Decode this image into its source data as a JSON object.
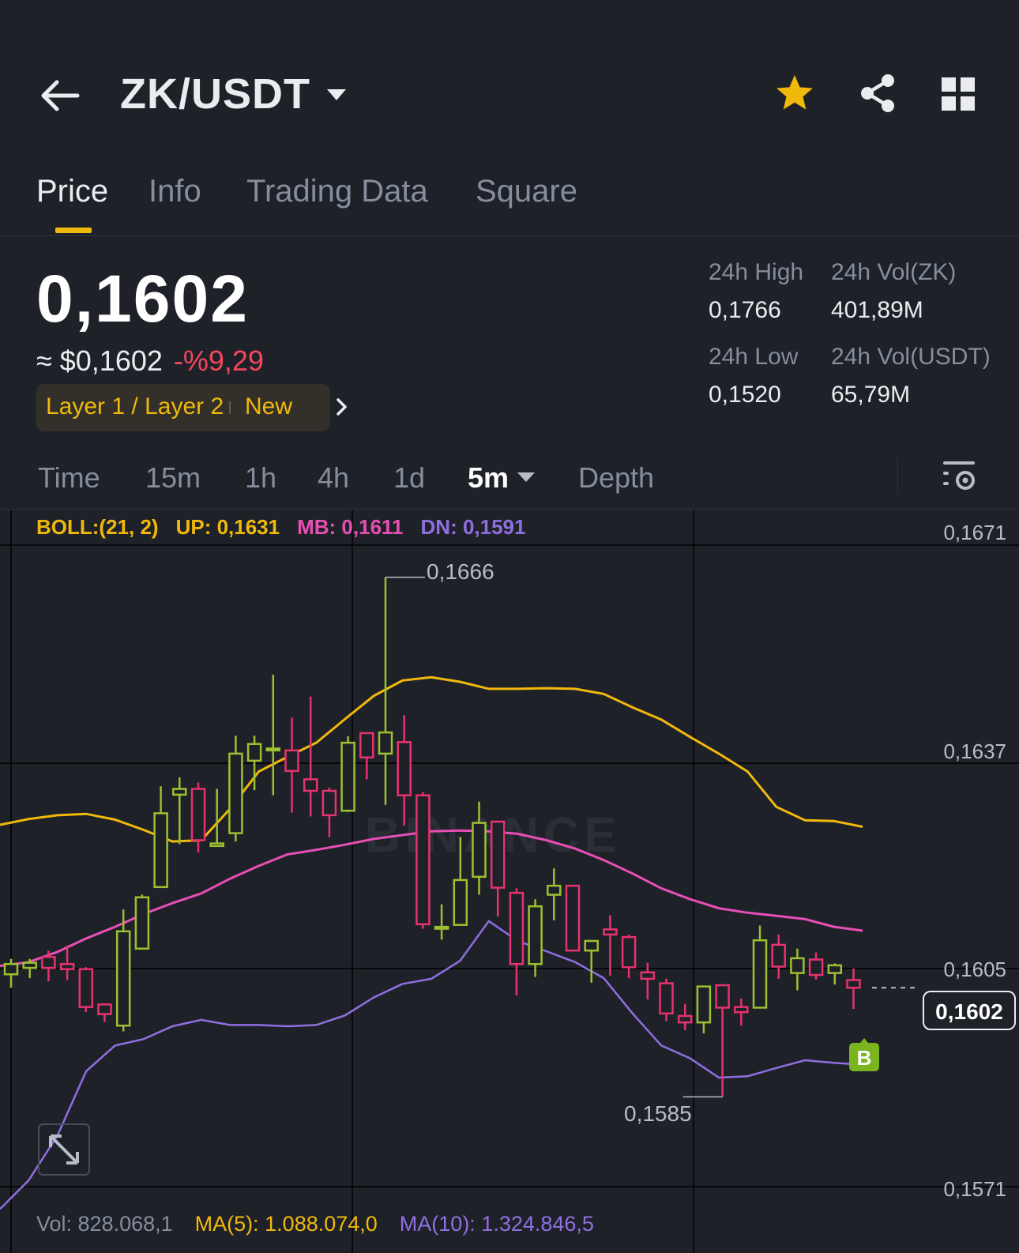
{
  "header": {
    "pair": "ZK/USDT",
    "icons": [
      "back-arrow-icon",
      "caret-down-icon",
      "star-icon",
      "share-icon",
      "grid-icon"
    ],
    "star_color": "#f0b90b"
  },
  "tabs": [
    {
      "label": "Price",
      "active": true
    },
    {
      "label": "Info",
      "active": false
    },
    {
      "label": "Trading Data",
      "active": false
    },
    {
      "label": "Square",
      "active": false
    }
  ],
  "price": {
    "last": "0,1602",
    "approx": "≈ $0,1602",
    "change": "-%9,29",
    "change_color": "#f6465d",
    "tag": "Layer 1 / Layer 2",
    "tag_new": "New"
  },
  "stats": {
    "high_label": "24h High",
    "high_value": "0,1766",
    "low_label": "24h Low",
    "low_value": "0,1520",
    "vol_zk_label": "24h Vol(ZK)",
    "vol_zk_value": "401,89M",
    "vol_usdt_label": "24h Vol(USDT)",
    "vol_usdt_value": "65,79M"
  },
  "intervals": [
    {
      "label": "Time",
      "active": false
    },
    {
      "label": "15m",
      "active": false
    },
    {
      "label": "1h",
      "active": false
    },
    {
      "label": "4h",
      "active": false
    },
    {
      "label": "1d",
      "active": false
    },
    {
      "label": "5m",
      "active": true
    },
    {
      "label": "Depth",
      "active": false
    }
  ],
  "chart": {
    "boll_label": "BOLL:(21, 2)",
    "up_label": "UP: 0,1631",
    "mb_label": "MB: 0,1611",
    "dn_label": "DN: 0,1591",
    "axis_labels": [
      "0,1671",
      "0,1637",
      "0,1605",
      "0,1571"
    ],
    "current_price": "0,1602",
    "max_label": "0,1666",
    "min_label": "0,1585",
    "marker": "B",
    "watermark": "BINANCE",
    "colors": {
      "up": "#9bc12f",
      "down": "#e6326e",
      "boll_up": "#f0b90b",
      "boll_mb": "#e84fb5",
      "boll_dn": "#8f6fe0",
      "grid": "#000000"
    },
    "volume": {
      "vol": "Vol: 828.068,1",
      "ma5": "MA(5): 1.088.074,0",
      "ma10": "MA(10): 1.324.846,5"
    }
  },
  "chart_data": {
    "type": "candlestick",
    "ylim": [
      0.1565,
      0.1673
    ],
    "y_ticks": [
      0.1671,
      0.1637,
      0.1605,
      0.1571
    ],
    "candles": [
      {
        "o": 0.16041,
        "c": 0.16057,
        "h": 0.16065,
        "l": 0.1602
      },
      {
        "o": 0.16051,
        "c": 0.16059,
        "h": 0.16065,
        "l": 0.16035
      },
      {
        "o": 0.16068,
        "c": 0.16051,
        "h": 0.16078,
        "l": 0.1603
      },
      {
        "o": 0.16057,
        "c": 0.16049,
        "h": 0.16086,
        "l": 0.16032
      },
      {
        "o": 0.16049,
        "c": 0.1599,
        "h": 0.16052,
        "l": 0.15982
      },
      {
        "o": 0.15994,
        "c": 0.15979,
        "h": 0.15995,
        "l": 0.15967
      },
      {
        "o": 0.15961,
        "c": 0.16108,
        "h": 0.16142,
        "l": 0.15952
      },
      {
        "o": 0.16081,
        "c": 0.16161,
        "h": 0.16165,
        "l": 0.16081
      },
      {
        "o": 0.16177,
        "c": 0.16292,
        "h": 0.16334,
        "l": 0.16177
      },
      {
        "o": 0.16321,
        "c": 0.1633,
        "h": 0.16348,
        "l": 0.16244
      },
      {
        "o": 0.1633,
        "c": 0.1625,
        "h": 0.1634,
        "l": 0.16231
      },
      {
        "o": 0.16241,
        "c": 0.16245,
        "h": 0.1633,
        "l": 0.1624
      },
      {
        "o": 0.16261,
        "c": 0.16385,
        "h": 0.16413,
        "l": 0.16248
      },
      {
        "o": 0.16374,
        "c": 0.164,
        "h": 0.16413,
        "l": 0.16328
      },
      {
        "o": 0.1639,
        "c": 0.16393,
        "h": 0.16508,
        "l": 0.1632
      },
      {
        "o": 0.1639,
        "c": 0.16358,
        "h": 0.16441,
        "l": 0.16293
      },
      {
        "o": 0.16345,
        "c": 0.16327,
        "h": 0.16474,
        "l": 0.16287
      },
      {
        "o": 0.16327,
        "c": 0.16289,
        "h": 0.16332,
        "l": 0.16255
      },
      {
        "o": 0.16296,
        "c": 0.16402,
        "h": 0.16412,
        "l": 0.16294
      },
      {
        "o": 0.16417,
        "c": 0.16379,
        "h": 0.16417,
        "l": 0.16345
      },
      {
        "o": 0.16385,
        "c": 0.16418,
        "h": 0.1666,
        "l": 0.16305
      },
      {
        "o": 0.16403,
        "c": 0.1632,
        "h": 0.16445,
        "l": 0.16273
      },
      {
        "o": 0.1632,
        "c": 0.16119,
        "h": 0.16325,
        "l": 0.16112
      },
      {
        "o": 0.16112,
        "c": 0.16115,
        "h": 0.1615,
        "l": 0.16095
      },
      {
        "o": 0.16118,
        "c": 0.16188,
        "h": 0.16255,
        "l": 0.16118
      },
      {
        "o": 0.16193,
        "c": 0.16277,
        "h": 0.1631,
        "l": 0.16165
      },
      {
        "o": 0.16279,
        "c": 0.16176,
        "h": 0.16279,
        "l": 0.16131
      },
      {
        "o": 0.16168,
        "c": 0.16057,
        "h": 0.16175,
        "l": 0.16008
      },
      {
        "o": 0.16057,
        "c": 0.16147,
        "h": 0.16158,
        "l": 0.16037
      },
      {
        "o": 0.16165,
        "c": 0.16179,
        "h": 0.16206,
        "l": 0.16125
      },
      {
        "o": 0.16179,
        "c": 0.16078,
        "h": 0.16179,
        "l": 0.16078
      },
      {
        "o": 0.16078,
        "c": 0.16093,
        "h": 0.16093,
        "l": 0.16028
      },
      {
        "o": 0.16111,
        "c": 0.16103,
        "h": 0.16133,
        "l": 0.16039
      },
      {
        "o": 0.16099,
        "c": 0.16052,
        "h": 0.16103,
        "l": 0.16035
      },
      {
        "o": 0.16044,
        "c": 0.16034,
        "h": 0.16059,
        "l": 0.16002
      },
      {
        "o": 0.16027,
        "c": 0.1598,
        "h": 0.16034,
        "l": 0.15968
      },
      {
        "o": 0.15976,
        "c": 0.15966,
        "h": 0.15995,
        "l": 0.15954
      },
      {
        "o": 0.15966,
        "c": 0.16022,
        "h": 0.16022,
        "l": 0.15949
      },
      {
        "o": 0.16024,
        "c": 0.15989,
        "h": 0.16024,
        "l": 0.1585
      },
      {
        "o": 0.1599,
        "c": 0.15982,
        "h": 0.16003,
        "l": 0.15961
      },
      {
        "o": 0.15989,
        "c": 0.16094,
        "h": 0.16117,
        "l": 0.15989
      },
      {
        "o": 0.16087,
        "c": 0.16053,
        "h": 0.16103,
        "l": 0.16034
      },
      {
        "o": 0.16043,
        "c": 0.16066,
        "h": 0.16081,
        "l": 0.16016
      },
      {
        "o": 0.16064,
        "c": 0.1604,
        "h": 0.16075,
        "l": 0.16033
      },
      {
        "o": 0.16043,
        "c": 0.16055,
        "h": 0.16058,
        "l": 0.16025
      },
      {
        "o": 0.16032,
        "c": 0.1602,
        "h": 0.1605,
        "l": 0.15987
      }
    ],
    "series": [
      {
        "name": "UP",
        "values": [
          0.16274,
          0.16283,
          0.16289,
          0.16291,
          0.16282,
          0.16266,
          0.16248,
          0.1625,
          0.16299,
          0.16357,
          0.1638,
          0.16402,
          0.16439,
          0.16475,
          0.16499,
          0.16504,
          0.16497,
          0.16486,
          0.16486,
          0.16487,
          0.16486,
          0.16478,
          0.16457,
          0.16438,
          0.16411,
          0.16385,
          0.16357,
          0.16302,
          0.16281,
          0.1628,
          0.16271
        ]
      },
      {
        "name": "MB",
        "values": [
          0.16054,
          0.1606,
          0.16076,
          0.16097,
          0.16115,
          0.16135,
          0.16152,
          0.16167,
          0.1619,
          0.1621,
          0.16228,
          0.16235,
          0.16243,
          0.16252,
          0.16258,
          0.16264,
          0.16265,
          0.16264,
          0.1626,
          0.1625,
          0.16237,
          0.16219,
          0.16198,
          0.16175,
          0.16158,
          0.16144,
          0.16137,
          0.16132,
          0.16127,
          0.16115,
          0.16109
        ]
      },
      {
        "name": "DN",
        "values": [
          0.15675,
          0.1572,
          0.1579,
          0.1589,
          0.1593,
          0.1594,
          0.1596,
          0.1597,
          0.15962,
          0.15962,
          0.1596,
          0.15962,
          0.15977,
          0.16005,
          0.16026,
          0.16034,
          0.16062,
          0.16124,
          0.16093,
          0.16077,
          0.1606,
          0.16035,
          0.1598,
          0.1593,
          0.1591,
          0.1588,
          0.15882,
          0.15895,
          0.15907,
          0.15903,
          0.159
        ]
      }
    ],
    "x_label": "",
    "y_label": ""
  }
}
